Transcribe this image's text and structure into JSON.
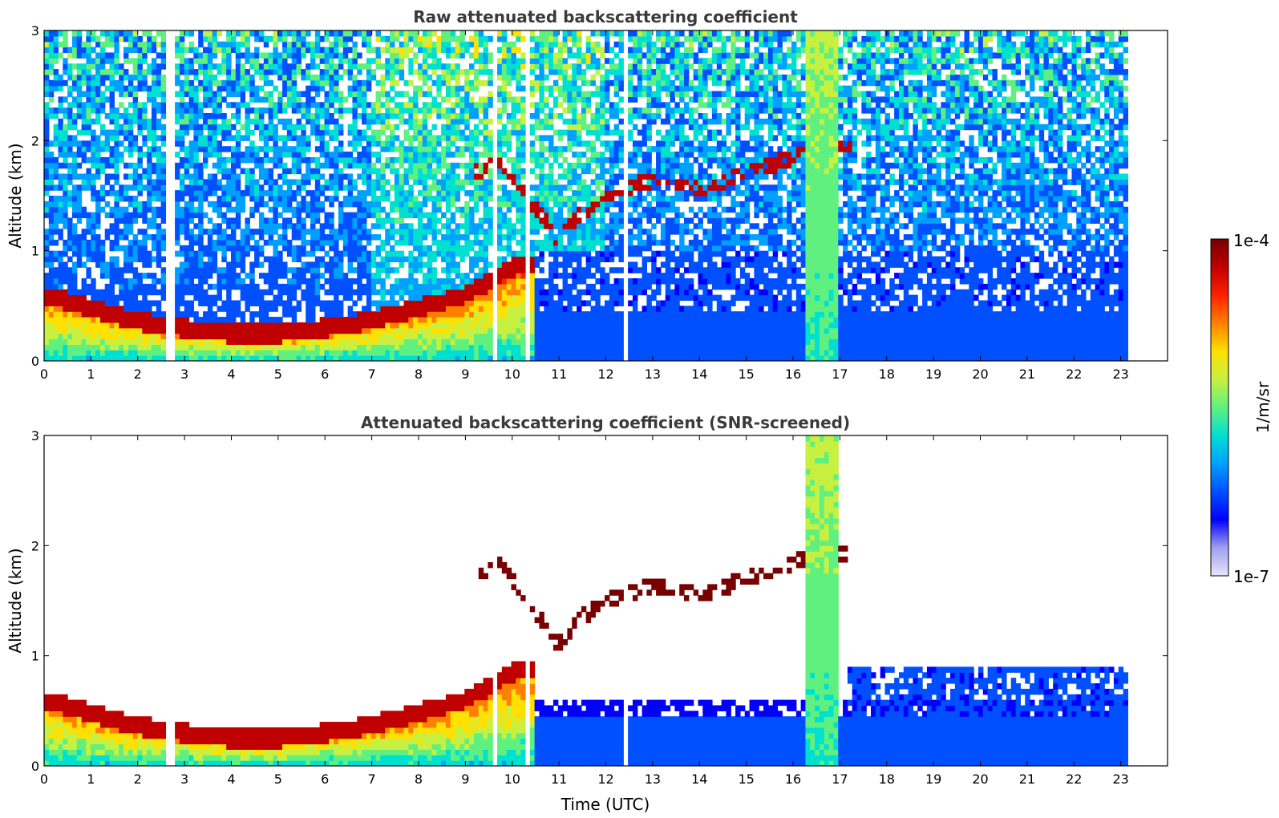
{
  "chart_data": [
    {
      "type": "heatmap",
      "title": "Raw attenuated backscattering coefficient",
      "ylabel": "Altitude (km)",
      "xlabel": "",
      "xlim": [
        0,
        24
      ],
      "ylim": [
        0,
        3
      ],
      "xticks": [
        "0",
        "1",
        "2",
        "3",
        "4",
        "5",
        "6",
        "7",
        "8",
        "9",
        "10",
        "11",
        "12",
        "13",
        "14",
        "15",
        "16",
        "17",
        "18",
        "19",
        "20",
        "21",
        "22",
        "23"
      ],
      "yticks": [
        "0",
        "1",
        "2",
        "3"
      ],
      "data_end_hour": 23.15,
      "boundary_layer_top_km": {
        "hours": [
          0,
          1,
          2,
          3,
          4,
          5,
          6,
          7,
          8,
          9,
          9.5,
          10,
          10.5
        ],
        "altitude": [
          0.6,
          0.48,
          0.36,
          0.3,
          0.25,
          0.25,
          0.3,
          0.37,
          0.48,
          0.6,
          0.72,
          0.85,
          0.9
        ]
      },
      "cloud_layer_km": {
        "hours": [
          9.2,
          9.7,
          11.0,
          11.5,
          12.0,
          13.0,
          14.0,
          15.0,
          16.0,
          17.2
        ],
        "altitude": [
          1.7,
          1.85,
          1.1,
          1.35,
          1.5,
          1.65,
          1.55,
          1.7,
          1.85,
          1.95
        ]
      },
      "precipitation_hours": [
        16.3,
        17.0
      ],
      "blank_profile_hours": [
        2.7,
        9.6,
        10.35,
        12.45
      ]
    },
    {
      "type": "heatmap",
      "title": "Attenuated backscattering coefficient (SNR-screened)",
      "ylabel": "Altitude (km)",
      "xlabel": "Time (UTC)",
      "xlim": [
        0,
        24
      ],
      "ylim": [
        0,
        3
      ],
      "xticks": [
        "0",
        "1",
        "2",
        "3",
        "4",
        "5",
        "6",
        "7",
        "8",
        "9",
        "10",
        "11",
        "12",
        "13",
        "14",
        "15",
        "16",
        "17",
        "18",
        "19",
        "20",
        "21",
        "22",
        "23"
      ],
      "yticks": [
        "0",
        "1",
        "2",
        "3"
      ],
      "data_end_hour": 23.15
    }
  ],
  "colorbar": {
    "label": "1/m/sr",
    "max_label": "1e-4",
    "min_label": "1e-7",
    "scale": "log",
    "colormap": [
      "#e6e6f8",
      "#a0a0f0",
      "#0000ff",
      "#0050ff",
      "#00a0ff",
      "#00e0d0",
      "#60f080",
      "#c8f040",
      "#ffe000",
      "#ff8000",
      "#ff2000",
      "#c00000",
      "#780000"
    ]
  }
}
